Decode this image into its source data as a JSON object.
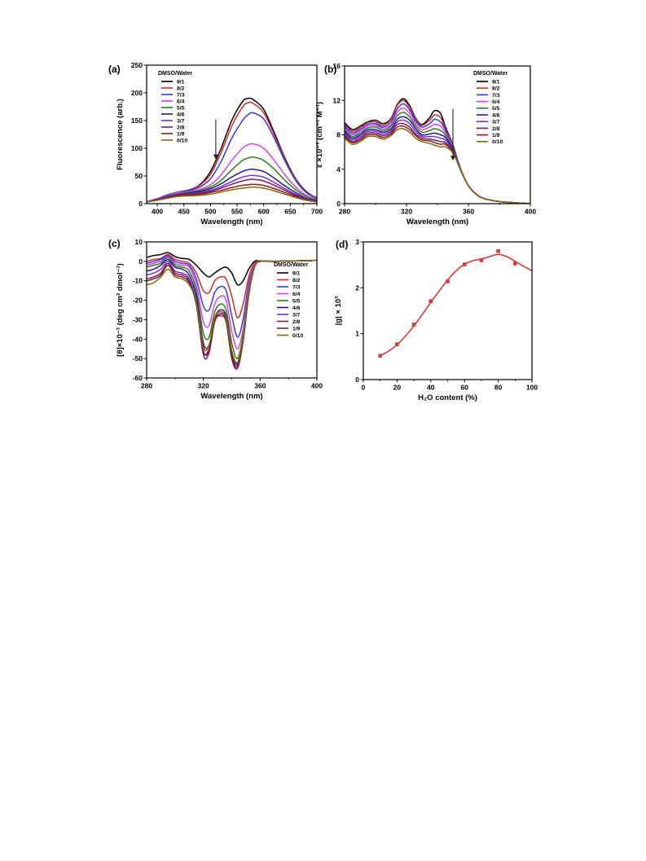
{
  "legend_title": "DMSO/Water",
  "series_names": [
    "9/1",
    "8/2",
    "7/3",
    "6/4",
    "5/5",
    "4/6",
    "3/7",
    "2/8",
    "1/9",
    "0/10"
  ],
  "series_colors": [
    "#000000",
    "#d62a2a",
    "#2f3ae8",
    "#e23ce8",
    "#2f7f1c",
    "#1c1a8c",
    "#7a2fd8",
    "#7a1c6a",
    "#8a1a1a",
    "#7d6a12"
  ],
  "chart_data": [
    {
      "type": "line",
      "panel_label": "(a)",
      "xlabel": "Wavelength (nm)",
      "ylabel": "Fluorescence (arb.)",
      "xlim": [
        380,
        700
      ],
      "ylim": [
        0,
        250
      ],
      "xticks": [
        400,
        450,
        500,
        550,
        600,
        650,
        700
      ],
      "yticks": [
        0,
        50,
        100,
        150,
        200,
        250
      ],
      "arrow": {
        "x": 510,
        "y_from": 152,
        "y_to": 80
      },
      "x": [
        380,
        400,
        420,
        440,
        460,
        480,
        500,
        520,
        540,
        560,
        570,
        580,
        600,
        620,
        640,
        660,
        680,
        700
      ],
      "series": [
        {
          "name": "9/1",
          "values": [
            3,
            9,
            16,
            21,
            25,
            34,
            58,
            100,
            150,
            184,
            190,
            188,
            170,
            128,
            82,
            45,
            22,
            10
          ]
        },
        {
          "name": "8/2",
          "values": [
            3,
            9,
            16,
            21,
            25,
            33,
            53,
            92,
            140,
            174,
            182,
            181,
            164,
            124,
            80,
            44,
            21,
            10
          ]
        },
        {
          "name": "7/3",
          "values": [
            3,
            9,
            16,
            21,
            24,
            30,
            45,
            76,
            118,
            150,
            160,
            164,
            153,
            118,
            77,
            42,
            20,
            9
          ]
        },
        {
          "name": "6/4",
          "values": [
            3,
            9,
            15,
            20,
            22,
            26,
            34,
            52,
            78,
            100,
            106,
            108,
            100,
            78,
            52,
            30,
            15,
            7
          ]
        },
        {
          "name": "5/5",
          "values": [
            3,
            8,
            14,
            18,
            21,
            24,
            30,
            42,
            61,
            78,
            82,
            84,
            78,
            62,
            42,
            25,
            13,
            6
          ]
        },
        {
          "name": "4/6",
          "values": [
            3,
            8,
            13,
            17,
            19,
            22,
            27,
            36,
            48,
            58,
            61,
            62,
            58,
            46,
            32,
            20,
            10,
            5
          ]
        },
        {
          "name": "3/7",
          "values": [
            3,
            8,
            13,
            17,
            18,
            20,
            24,
            31,
            40,
            48,
            50,
            51,
            48,
            38,
            27,
            17,
            9,
            4
          ]
        },
        {
          "name": "2/8",
          "values": [
            3,
            7,
            12,
            16,
            17,
            19,
            22,
            28,
            35,
            41,
            43,
            44,
            41,
            33,
            24,
            15,
            8,
            4
          ]
        },
        {
          "name": "1/9",
          "values": [
            3,
            7,
            11,
            15,
            16,
            17,
            20,
            24,
            29,
            33,
            34,
            35,
            33,
            27,
            20,
            13,
            7,
            3
          ]
        },
        {
          "name": "0/10",
          "values": [
            3,
            6,
            10,
            13,
            14,
            15,
            17,
            21,
            25,
            28,
            29,
            30,
            28,
            23,
            17,
            11,
            6,
            3
          ]
        }
      ]
    },
    {
      "type": "line",
      "panel_label": "(b)",
      "xlabel": "Wavelength (nm)",
      "ylabel": "ε ×10⁻³ (cm⁻¹ M⁻¹)",
      "xlim": [
        280,
        400
      ],
      "ylim": [
        0,
        16
      ],
      "xticks": [
        280,
        320,
        360,
        400
      ],
      "yticks": [
        0,
        4,
        8,
        12,
        16
      ],
      "arrow": {
        "x": 350,
        "y_from": 11,
        "y_to": 5
      },
      "x": [
        280,
        285,
        290,
        295,
        300,
        305,
        310,
        314,
        318,
        322,
        326,
        330,
        335,
        338,
        342,
        345,
        350,
        355,
        360,
        365,
        370,
        380,
        390,
        400
      ],
      "series": [
        {
          "name": "9/1",
          "values": [
            9.4,
            8.6,
            9.0,
            9.5,
            9.7,
            9.3,
            9.9,
            11.5,
            12.2,
            11.4,
            9.9,
            9.2,
            10.0,
            10.8,
            10.5,
            9.0,
            6.8,
            4.0,
            2.1,
            1.1,
            0.6,
            0.25,
            0.1,
            0.0
          ]
        },
        {
          "name": "8/2",
          "values": [
            9.2,
            8.4,
            8.8,
            9.4,
            9.5,
            9.1,
            9.8,
            11.4,
            12.0,
            11.2,
            9.8,
            9.1,
            9.7,
            10.3,
            10.0,
            8.8,
            6.7,
            4.0,
            2.1,
            1.1,
            0.6,
            0.25,
            0.1,
            0.0
          ]
        },
        {
          "name": "7/3",
          "values": [
            9.0,
            8.2,
            8.6,
            9.2,
            9.3,
            8.9,
            9.5,
            11.0,
            11.6,
            10.9,
            9.6,
            8.9,
            9.3,
            9.8,
            9.5,
            8.6,
            6.6,
            4.0,
            2.1,
            1.1,
            0.6,
            0.25,
            0.1,
            0.0
          ]
        },
        {
          "name": "6/4",
          "values": [
            8.8,
            8.0,
            8.4,
            9.0,
            9.1,
            8.7,
            9.2,
            10.6,
            11.1,
            10.5,
            9.3,
            8.6,
            8.9,
            9.2,
            9.0,
            8.3,
            6.5,
            3.9,
            2.1,
            1.1,
            0.6,
            0.25,
            0.1,
            0.0
          ]
        },
        {
          "name": "5/5",
          "values": [
            8.6,
            7.8,
            8.2,
            8.8,
            8.9,
            8.5,
            9.0,
            10.2,
            10.6,
            10.1,
            9.0,
            8.3,
            8.5,
            8.7,
            8.5,
            8.0,
            6.4,
            3.9,
            2.1,
            1.1,
            0.6,
            0.25,
            0.1,
            0.0
          ]
        },
        {
          "name": "4/6",
          "values": [
            8.4,
            7.6,
            8.0,
            8.6,
            8.6,
            8.3,
            8.7,
            9.8,
            10.1,
            9.7,
            8.7,
            8.0,
            8.1,
            8.2,
            8.0,
            7.7,
            6.3,
            3.9,
            2.1,
            1.1,
            0.6,
            0.25,
            0.1,
            0.0
          ]
        },
        {
          "name": "3/7",
          "values": [
            8.2,
            7.4,
            7.8,
            8.4,
            8.4,
            8.1,
            8.5,
            9.5,
            9.7,
            9.3,
            8.4,
            7.8,
            7.8,
            7.8,
            7.6,
            7.4,
            6.2,
            3.9,
            2.1,
            1.1,
            0.6,
            0.25,
            0.1,
            0.0
          ]
        },
        {
          "name": "2/8",
          "values": [
            8.0,
            7.2,
            7.6,
            8.2,
            8.2,
            7.9,
            8.3,
            9.2,
            9.3,
            8.9,
            8.1,
            7.6,
            7.5,
            7.4,
            7.2,
            7.1,
            6.1,
            3.9,
            2.1,
            1.1,
            0.6,
            0.25,
            0.1,
            0.0
          ]
        },
        {
          "name": "1/9",
          "values": [
            7.8,
            7.1,
            7.4,
            8.0,
            8.0,
            7.7,
            8.1,
            8.9,
            9.0,
            8.6,
            7.9,
            7.4,
            7.3,
            7.1,
            6.9,
            6.9,
            6.0,
            3.9,
            2.1,
            1.1,
            0.6,
            0.25,
            0.1,
            0.0
          ]
        },
        {
          "name": "0/10",
          "values": [
            7.6,
            6.9,
            7.2,
            7.8,
            7.8,
            7.5,
            7.9,
            8.6,
            8.7,
            8.3,
            7.6,
            7.2,
            7.0,
            6.8,
            6.6,
            6.6,
            5.9,
            3.9,
            2.1,
            1.1,
            0.6,
            0.25,
            0.1,
            0.0
          ]
        }
      ]
    },
    {
      "type": "line",
      "panel_label": "(c)",
      "xlabel": "Wavelength (nm)",
      "ylabel": "[θ]×10⁻³ (deg cm² dmol⁻¹)",
      "xlim": [
        280,
        400
      ],
      "ylim": [
        -60,
        10
      ],
      "xticks": [
        280,
        320,
        360,
        400
      ],
      "yticks": [
        10,
        0,
        -10,
        -20,
        -30,
        -40,
        -50,
        -60
      ],
      "x": [
        280,
        285,
        290,
        295,
        300,
        305,
        310,
        315,
        320,
        324,
        328,
        332,
        336,
        340,
        344,
        348,
        352,
        356,
        360,
        370,
        380,
        390,
        400
      ],
      "series": [
        {
          "name": "9/1",
          "values": [
            2.0,
            3.0,
            3.5,
            4.5,
            2.5,
            1.5,
            1.0,
            -2.0,
            -6.0,
            -8.0,
            -6.0,
            -4.0,
            -3.0,
            -6.0,
            -12.0,
            -10.0,
            -4.0,
            0.0,
            0.2,
            0.1,
            0.2,
            0.3,
            0.5
          ]
        },
        {
          "name": "8/2",
          "values": [
            0.0,
            1.0,
            1.5,
            3.5,
            1.0,
            0.0,
            -1.0,
            -6.0,
            -15.0,
            -16.0,
            -10.0,
            -8.0,
            -9.0,
            -18.0,
            -29.0,
            -22.0,
            -8.0,
            -1.0,
            0.0,
            0.0,
            0.2,
            0.3,
            0.5
          ]
        },
        {
          "name": "7/3",
          "values": [
            -1.0,
            0.0,
            1.0,
            3.0,
            0.0,
            -1.0,
            -2.0,
            -9.0,
            -23.0,
            -25.0,
            -16.0,
            -13.0,
            -15.0,
            -28.0,
            -39.0,
            -30.0,
            -11.0,
            -2.0,
            0.0,
            0.0,
            0.2,
            0.3,
            0.5
          ]
        },
        {
          "name": "6/4",
          "values": [
            -2.0,
            -1.0,
            0.0,
            2.5,
            -1.0,
            -2.0,
            -3.0,
            -12.0,
            -31.0,
            -33.0,
            -22.0,
            -18.0,
            -20.0,
            -36.0,
            -45.0,
            -35.0,
            -13.0,
            -2.0,
            0.0,
            0.0,
            0.2,
            0.3,
            0.5
          ]
        },
        {
          "name": "5/5",
          "values": [
            -3.0,
            -2.0,
            -1.0,
            2.0,
            -2.0,
            -3.0,
            -5.0,
            -15.0,
            -37.0,
            -39.0,
            -26.0,
            -22.0,
            -25.0,
            -42.0,
            -50.0,
            -38.0,
            -15.0,
            -3.0,
            0.0,
            0.0,
            0.2,
            0.3,
            0.5
          ]
        },
        {
          "name": "4/6",
          "values": [
            -5.0,
            -4.0,
            -2.0,
            1.0,
            -3.0,
            -4.0,
            -7.0,
            -18.0,
            -42.0,
            -43.0,
            -29.0,
            -25.0,
            -28.0,
            -46.0,
            -53.0,
            -40.0,
            -16.0,
            -3.0,
            0.0,
            0.0,
            0.2,
            0.3,
            0.5
          ]
        },
        {
          "name": "3/7",
          "values": [
            -7.0,
            -6.0,
            -4.0,
            0.0,
            -5.0,
            -6.0,
            -9.0,
            -21.0,
            -46.0,
            -46.0,
            -31.0,
            -27.0,
            -30.0,
            -49.0,
            -55.0,
            -41.0,
            -17.0,
            -3.0,
            0.0,
            0.0,
            0.2,
            0.3,
            0.5
          ]
        },
        {
          "name": "2/8",
          "values": [
            -9.0,
            -8.0,
            -6.0,
            -1.0,
            -6.0,
            -7.0,
            -10.0,
            -22.0,
            -48.0,
            -47.0,
            -31.0,
            -28.0,
            -31.0,
            -50.0,
            -55.0,
            -41.0,
            -17.0,
            -3.0,
            0.0,
            0.0,
            0.2,
            0.3,
            0.5
          ]
        },
        {
          "name": "1/9",
          "values": [
            -10.0,
            -9.0,
            -7.0,
            -2.0,
            -7.0,
            -8.0,
            -11.0,
            -22.0,
            -46.0,
            -45.0,
            -30.0,
            -27.0,
            -30.0,
            -48.0,
            -54.0,
            -40.0,
            -17.0,
            -3.0,
            0.0,
            0.0,
            0.2,
            0.3,
            0.5
          ]
        },
        {
          "name": "0/10",
          "values": [
            -12.0,
            -11.0,
            -8.0,
            -4.0,
            -8.0,
            -9.0,
            -12.0,
            -21.0,
            -44.0,
            -43.0,
            -29.0,
            -26.0,
            -29.0,
            -46.0,
            -52.0,
            -39.0,
            -16.0,
            -3.0,
            0.0,
            0.0,
            0.2,
            0.3,
            0.5
          ]
        }
      ]
    },
    {
      "type": "scatter",
      "panel_label": "(d)",
      "xlabel": "H₂O content (%)",
      "ylabel": "|g| × 10³",
      "xlim": [
        0,
        100
      ],
      "ylim": [
        0,
        3
      ],
      "xticks": [
        0,
        20,
        40,
        60,
        80,
        100
      ],
      "yticks": [
        0,
        1,
        2,
        3
      ],
      "points": {
        "x": [
          10,
          20,
          30,
          40,
          50,
          60,
          70,
          80,
          90
        ],
        "y": [
          0.52,
          0.77,
          1.2,
          1.71,
          2.14,
          2.51,
          2.6,
          2.8,
          2.53
        ]
      },
      "fit": {
        "x": [
          10,
          15,
          20,
          25,
          30,
          35,
          40,
          45,
          50,
          55,
          60,
          65,
          70,
          75,
          80,
          85,
          90,
          95,
          100
        ],
        "y": [
          0.52,
          0.62,
          0.76,
          0.95,
          1.17,
          1.42,
          1.68,
          1.93,
          2.17,
          2.37,
          2.51,
          2.59,
          2.63,
          2.68,
          2.73,
          2.68,
          2.58,
          2.47,
          2.37
        ]
      }
    }
  ]
}
